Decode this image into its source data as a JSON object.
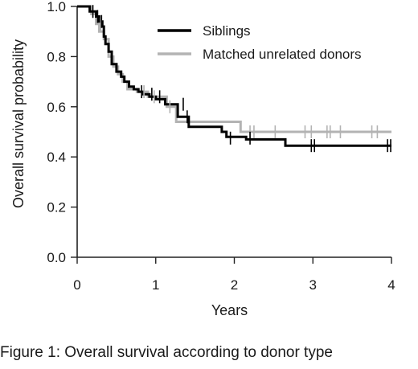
{
  "caption": "Figure 1: Overall survival according to donor type",
  "chart_data": {
    "type": "line",
    "step": true,
    "xlabel": "Years",
    "ylabel": "Overall survival probability",
    "xlim": [
      0,
      4.1
    ],
    "ylim": [
      0,
      1.0
    ],
    "xticks": [
      0,
      1,
      2,
      3,
      4
    ],
    "yticks": [
      0.0,
      0.2,
      0.4,
      0.6,
      0.8,
      1.0
    ],
    "xtick_labels": [
      "0",
      "1",
      "2",
      "3",
      "4"
    ],
    "ytick_labels": [
      "0.0",
      "0.2",
      "0.4",
      "0.6",
      "0.8",
      "1.0"
    ],
    "grid": false,
    "legend_position": "top-right",
    "series": [
      {
        "name": "Siblings",
        "color": "#000000",
        "points": [
          [
            0,
            1.0
          ],
          [
            0.16,
            1.0
          ],
          [
            0.16,
            0.98
          ],
          [
            0.24,
            0.98
          ],
          [
            0.24,
            0.96
          ],
          [
            0.28,
            0.96
          ],
          [
            0.28,
            0.94
          ],
          [
            0.32,
            0.94
          ],
          [
            0.32,
            0.92
          ],
          [
            0.34,
            0.92
          ],
          [
            0.34,
            0.88
          ],
          [
            0.36,
            0.88
          ],
          [
            0.36,
            0.85
          ],
          [
            0.4,
            0.85
          ],
          [
            0.4,
            0.82
          ],
          [
            0.44,
            0.82
          ],
          [
            0.44,
            0.77
          ],
          [
            0.5,
            0.77
          ],
          [
            0.5,
            0.74
          ],
          [
            0.56,
            0.74
          ],
          [
            0.56,
            0.72
          ],
          [
            0.6,
            0.72
          ],
          [
            0.6,
            0.7
          ],
          [
            0.66,
            0.7
          ],
          [
            0.66,
            0.68
          ],
          [
            0.72,
            0.68
          ],
          [
            0.72,
            0.67
          ],
          [
            0.78,
            0.67
          ],
          [
            0.78,
            0.66
          ],
          [
            0.84,
            0.66
          ],
          [
            0.84,
            0.65
          ],
          [
            0.92,
            0.65
          ],
          [
            0.92,
            0.64
          ],
          [
            1.0,
            0.64
          ],
          [
            1.0,
            0.63
          ],
          [
            1.12,
            0.63
          ],
          [
            1.12,
            0.61
          ],
          [
            1.28,
            0.61
          ],
          [
            1.28,
            0.56
          ],
          [
            1.42,
            0.56
          ],
          [
            1.42,
            0.52
          ],
          [
            1.84,
            0.52
          ],
          [
            1.84,
            0.5
          ],
          [
            1.9,
            0.5
          ],
          [
            1.9,
            0.48
          ],
          [
            2.15,
            0.48
          ],
          [
            2.15,
            0.47
          ],
          [
            2.65,
            0.47
          ],
          [
            2.65,
            0.445
          ],
          [
            4.0,
            0.445
          ]
        ],
        "censor": [
          [
            0.2,
            0.98
          ],
          [
            0.26,
            0.96
          ],
          [
            0.31,
            0.94
          ],
          [
            0.82,
            0.66
          ],
          [
            0.95,
            0.65
          ],
          [
            1.05,
            0.64
          ],
          [
            1.35,
            0.61
          ],
          [
            1.4,
            0.56
          ],
          [
            1.95,
            0.475
          ],
          [
            2.2,
            0.475
          ],
          [
            2.98,
            0.445
          ],
          [
            3.02,
            0.445
          ],
          [
            3.95,
            0.445
          ],
          [
            3.99,
            0.445
          ]
        ]
      },
      {
        "name": "Matched unrelated donors",
        "color": "#b3b3b3",
        "points": [
          [
            0,
            1.0
          ],
          [
            0.18,
            1.0
          ],
          [
            0.18,
            0.97
          ],
          [
            0.24,
            0.97
          ],
          [
            0.24,
            0.93
          ],
          [
            0.28,
            0.93
          ],
          [
            0.28,
            0.9
          ],
          [
            0.34,
            0.9
          ],
          [
            0.34,
            0.87
          ],
          [
            0.4,
            0.87
          ],
          [
            0.4,
            0.8
          ],
          [
            0.46,
            0.8
          ],
          [
            0.46,
            0.76
          ],
          [
            0.52,
            0.76
          ],
          [
            0.52,
            0.73
          ],
          [
            0.58,
            0.73
          ],
          [
            0.58,
            0.7
          ],
          [
            0.64,
            0.7
          ],
          [
            0.64,
            0.67
          ],
          [
            0.76,
            0.67
          ],
          [
            0.76,
            0.66
          ],
          [
            0.9,
            0.66
          ],
          [
            0.9,
            0.64
          ],
          [
            1.14,
            0.64
          ],
          [
            1.14,
            0.6
          ],
          [
            1.26,
            0.6
          ],
          [
            1.26,
            0.54
          ],
          [
            2.08,
            0.54
          ],
          [
            2.08,
            0.5
          ],
          [
            4.0,
            0.5
          ]
        ],
        "censor": [
          [
            0.3,
            0.93
          ],
          [
            0.85,
            0.66
          ],
          [
            0.98,
            0.64
          ],
          [
            1.18,
            0.6
          ],
          [
            2.2,
            0.5
          ],
          [
            2.25,
            0.5
          ],
          [
            2.52,
            0.5
          ],
          [
            2.9,
            0.5
          ],
          [
            2.98,
            0.5
          ],
          [
            3.18,
            0.5
          ],
          [
            3.22,
            0.5
          ],
          [
            3.35,
            0.5
          ],
          [
            3.75,
            0.5
          ],
          [
            3.82,
            0.5
          ]
        ]
      }
    ]
  }
}
